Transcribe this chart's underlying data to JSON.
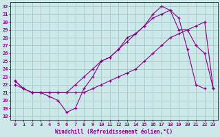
{
  "background_color": "#cce8e8",
  "grid_color": "#aacccc",
  "line_color": "#880088",
  "xlabel": "Windchill (Refroidissement éolien,°C)",
  "xlim": [
    -0.5,
    23.5
  ],
  "ylim": [
    17.5,
    32.5
  ],
  "yticks": [
    18,
    19,
    20,
    21,
    22,
    23,
    24,
    25,
    26,
    27,
    28,
    29,
    30,
    31,
    32
  ],
  "xticks": [
    0,
    1,
    2,
    3,
    4,
    5,
    6,
    7,
    8,
    9,
    10,
    11,
    12,
    13,
    14,
    15,
    16,
    17,
    18,
    19,
    20,
    21,
    22,
    23
  ],
  "curve1_x": [
    0,
    1,
    2,
    3,
    4,
    5,
    6,
    7,
    8,
    9,
    10,
    11,
    12,
    13,
    14,
    15,
    16,
    17,
    18,
    19,
    20,
    21,
    22
  ],
  "curve1_y": [
    22.5,
    21.5,
    21.0,
    21.0,
    20.5,
    20.0,
    18.5,
    19.0,
    21.5,
    23.0,
    25.0,
    25.5,
    26.5,
    28.0,
    28.5,
    29.5,
    31.0,
    32.0,
    31.5,
    30.5,
    26.5,
    22.0,
    21.5
  ],
  "curve2_x": [
    0,
    1,
    2,
    3,
    4,
    5,
    6,
    7,
    8,
    9,
    10,
    11,
    12,
    13,
    14,
    15,
    16,
    17,
    18,
    19,
    20,
    21,
    22,
    23
  ],
  "curve2_y": [
    22.0,
    21.5,
    21.0,
    21.0,
    21.0,
    21.0,
    21.0,
    21.0,
    21.0,
    21.5,
    22.0,
    22.5,
    23.0,
    23.5,
    24.0,
    25.0,
    26.0,
    27.0,
    28.0,
    28.5,
    29.0,
    29.5,
    30.0,
    21.5
  ],
  "curve3_x": [
    0,
    1,
    2,
    3,
    4,
    5,
    6,
    7,
    8,
    9,
    10,
    11,
    12,
    13,
    14,
    15,
    16,
    17,
    18,
    19,
    20,
    21,
    22,
    23
  ],
  "curve3_y": [
    22.5,
    21.5,
    21.0,
    21.0,
    21.0,
    21.0,
    21.0,
    22.0,
    23.0,
    24.0,
    25.0,
    25.5,
    26.5,
    27.5,
    28.5,
    29.5,
    30.5,
    31.0,
    31.5,
    29.0,
    29.0,
    27.0,
    26.0,
    21.5
  ]
}
